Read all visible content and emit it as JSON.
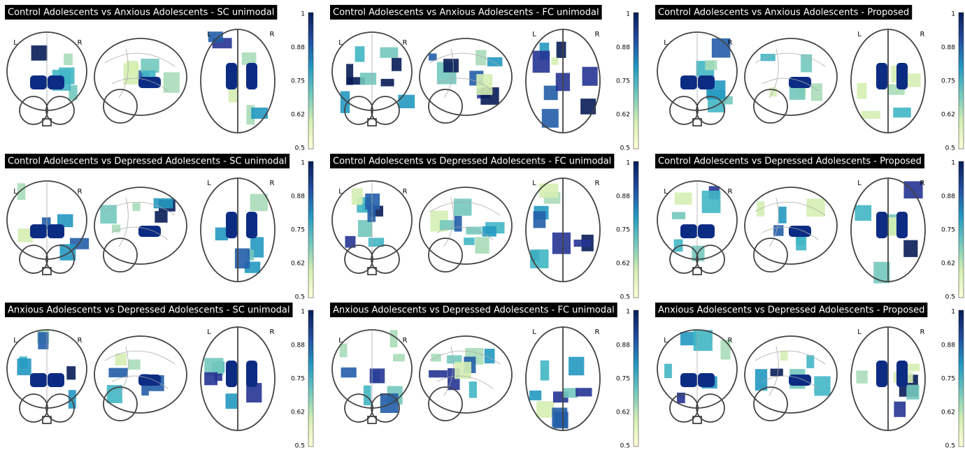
{
  "panels": [
    {
      "title": "Control Adolescents vs Anxious Adolescents - SC unimodal"
    },
    {
      "title": "Control Adolescents vs Anxious Adolescents - FC unimodal"
    },
    {
      "title": "Control Adolescents vs Anxious Adolescents - Proposed"
    },
    {
      "title": "Control Adolescents vs Depressed Adolescents - SC unimodal"
    },
    {
      "title": "Control Adolescents vs Depressed Adolescents - FC unimodal"
    },
    {
      "title": "Control Adolescents vs Depressed Adolescents - Proposed"
    },
    {
      "title": "Anxious Adolescents vs Depressed Adolescents - SC unimodal"
    },
    {
      "title": "Anxious Adolescents vs Depressed Adolescents - FC unimodal"
    },
    {
      "title": "Anxious Adolescents vs Depressed Adolescents - Proposed"
    }
  ],
  "orientation_labels": [
    "L",
    "R"
  ],
  "colorbar_ticks": [
    "1",
    "0.88",
    "0.75",
    "0.62",
    "0.5"
  ]
}
